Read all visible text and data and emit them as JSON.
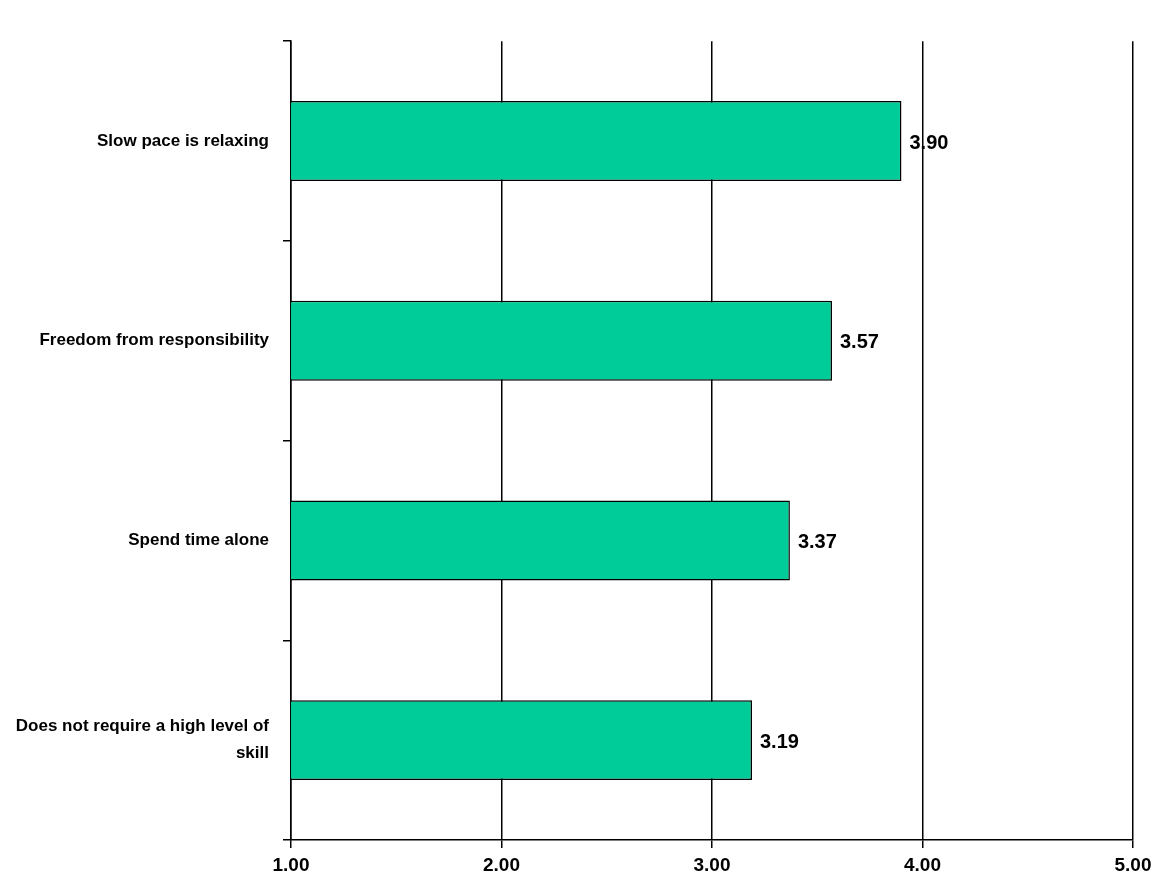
{
  "chart_data": {
    "type": "bar",
    "orientation": "horizontal",
    "categories": [
      "Slow pace is relaxing",
      "Freedom from responsibility",
      "Spend time alone",
      "Does not require a high level of skill"
    ],
    "values": [
      3.9,
      3.57,
      3.37,
      3.19
    ],
    "value_labels": [
      "3.90",
      "3.57",
      "3.37",
      "3.19"
    ],
    "color": "#00cc99",
    "xlim": [
      1,
      5
    ],
    "xticks": [
      {
        "value": 1,
        "label": "1.00"
      },
      {
        "value": 2,
        "label": "2.00"
      },
      {
        "value": 3,
        "label": "3.00"
      },
      {
        "value": 4,
        "label": "4.00"
      },
      {
        "value": 5,
        "label": "5.00"
      }
    ],
    "grid": "x"
  }
}
